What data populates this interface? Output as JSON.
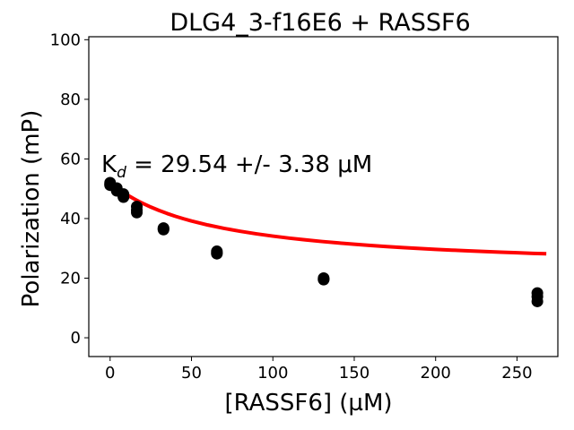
{
  "chart_data": {
    "type": "scatter",
    "title": "DLG4_3-f16E6 + RASSF6",
    "xlabel": "[RASSF6] (µM)",
    "ylabel": "Polarization (mP)",
    "xlim": [
      -13.1,
      275.1
    ],
    "ylim": [
      -6.3,
      101
    ],
    "xticks": [
      0,
      50,
      100,
      150,
      200,
      250
    ],
    "yticks": [
      0,
      20,
      40,
      60,
      80,
      100
    ],
    "grid": false,
    "annotation": {
      "prefix": "K",
      "subscript": "d",
      "text": " = 29.54 +/- 3.38 μM"
    },
    "series": [
      {
        "kind": "points",
        "color": "#000000",
        "x": [
          0,
          0,
          0,
          4.1,
          4.1,
          4.1,
          8.2,
          8.2,
          8.2,
          16.4,
          16.4,
          16.4,
          32.8,
          32.8,
          32.8,
          65.6,
          65.6,
          65.6,
          131.2,
          131.2,
          131.2,
          262.5,
          262.5,
          262.5
        ],
        "y": [
          52,
          51.5,
          51.2,
          50.2,
          49.3,
          49.6,
          48.2,
          47.5,
          47.2,
          44,
          42,
          42.8,
          36.8,
          36.5,
          36.3,
          29,
          28.5,
          28.2,
          20,
          19.7,
          19.5,
          15,
          13.8,
          12.2
        ]
      },
      {
        "kind": "fit",
        "color": "#ff0000",
        "x": [
          0,
          2,
          4,
          6,
          8,
          10,
          12,
          14,
          16,
          18,
          20,
          25,
          30,
          35,
          40,
          45,
          50,
          60,
          70,
          80,
          90,
          100,
          110,
          120,
          130,
          140,
          150,
          160,
          170,
          180,
          190,
          200,
          210,
          220,
          230,
          240,
          250,
          260,
          268
        ],
        "y": [
          52,
          51.13,
          50.31,
          49.54,
          48.8,
          48.11,
          47.45,
          46.82,
          46.22,
          45.65,
          45.11,
          43.85,
          42.72,
          41.7,
          40.78,
          39.95,
          39.19,
          37.84,
          36.7,
          35.72,
          34.86,
          34.1,
          33.43,
          32.84,
          32.3,
          31.82,
          31.38,
          30.98,
          30.61,
          30.27,
          29.96,
          29.67,
          29.41,
          29.16,
          28.93,
          28.71,
          28.51,
          28.32,
          28.18
        ]
      }
    ]
  }
}
